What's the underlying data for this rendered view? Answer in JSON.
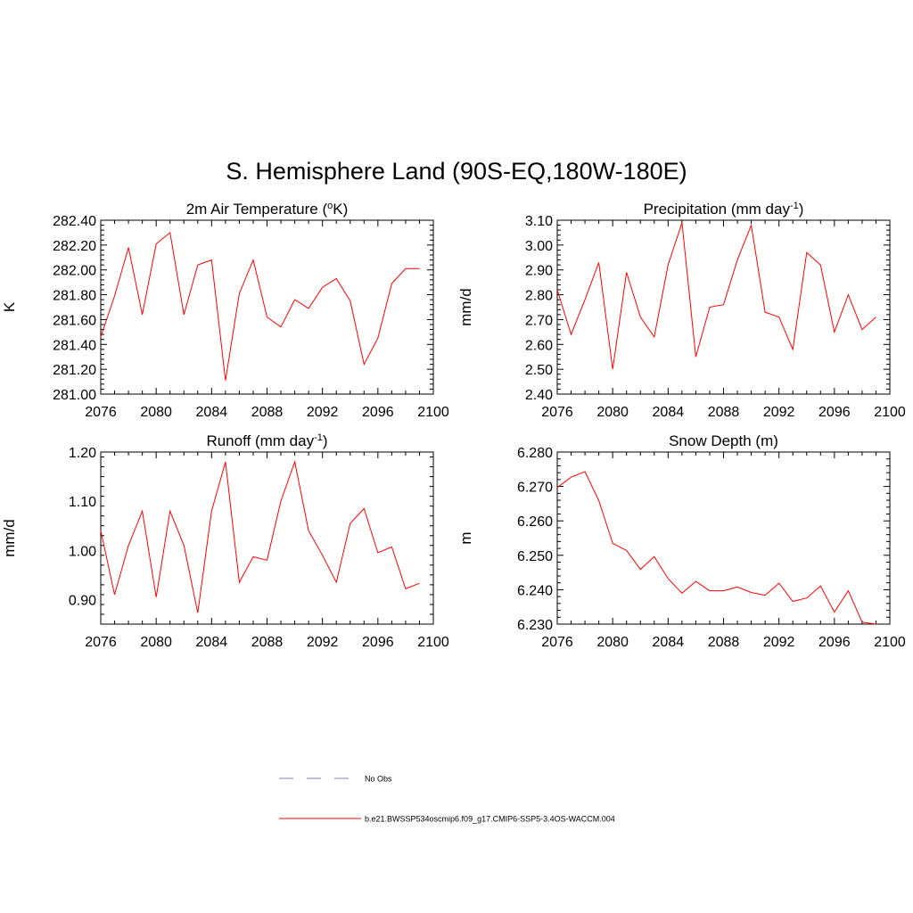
{
  "figure": {
    "title": "S. Hemisphere Land (90S-EQ,180W-180E)"
  },
  "legend": {
    "obs_label": "No Obs",
    "obs_color": "#9999dd",
    "model_label": "b.e21.BWSSP534oscmip6.f09_g17.CMIP6-SSP5-3.4OS-WACCM.004",
    "model_color": "#ff0000"
  },
  "chart_data": [
    {
      "type": "line",
      "panel": "top-left",
      "title": "2m Air Temperature (",
      "title_sup": "o",
      "title_post": "K)",
      "ylabel": "K",
      "xlim": [
        2076,
        2100
      ],
      "ylim": [
        281.0,
        282.4
      ],
      "xticks": [
        "2076",
        "2080",
        "2084",
        "2088",
        "2092",
        "2096",
        "2100"
      ],
      "yticks": [
        "281.00",
        "281.20",
        "281.40",
        "281.60",
        "281.80",
        "282.00",
        "282.20",
        "282.40"
      ],
      "x": [
        2076,
        2077,
        2078,
        2079,
        2080,
        2081,
        2082,
        2083,
        2084,
        2085,
        2086,
        2087,
        2088,
        2089,
        2090,
        2091,
        2092,
        2093,
        2094,
        2095,
        2096,
        2097,
        2098,
        2099
      ],
      "series": [
        {
          "name": "b.e21.BWSSP534oscmip6.f09_g17.CMIP6-SSP5-3.4OS-WACCM.004",
          "color": "#ff0000",
          "values": [
            281.46,
            281.79,
            282.18,
            281.64,
            282.21,
            282.3,
            281.64,
            282.04,
            282.08,
            281.11,
            281.81,
            282.08,
            281.62,
            281.54,
            281.76,
            281.69,
            281.86,
            281.93,
            281.75,
            281.24,
            281.45,
            281.89,
            282.01,
            282.01
          ]
        }
      ]
    },
    {
      "type": "line",
      "panel": "top-right",
      "title": "Precipitation (mm day",
      "title_sup": "-1",
      "title_post": ")",
      "ylabel": "mm/d",
      "xlim": [
        2076,
        2100
      ],
      "ylim": [
        2.4,
        3.1
      ],
      "xticks": [
        "2076",
        "2080",
        "2084",
        "2088",
        "2092",
        "2096",
        "2100"
      ],
      "yticks": [
        "2.40",
        "2.50",
        "2.60",
        "2.70",
        "2.80",
        "2.90",
        "3.00",
        "3.10"
      ],
      "x": [
        2076,
        2077,
        2078,
        2079,
        2080,
        2081,
        2082,
        2083,
        2084,
        2085,
        2086,
        2087,
        2088,
        2089,
        2090,
        2091,
        2092,
        2093,
        2094,
        2095,
        2096,
        2097,
        2098,
        2099
      ],
      "series": [
        {
          "name": "b.e21.BWSSP534oscmip6.f09_g17.CMIP6-SSP5-3.4OS-WACCM.004",
          "color": "#ff0000",
          "values": [
            2.82,
            2.64,
            2.78,
            2.93,
            2.5,
            2.89,
            2.71,
            2.63,
            2.92,
            3.09,
            2.55,
            2.75,
            2.76,
            2.94,
            3.08,
            2.73,
            2.71,
            2.58,
            2.97,
            2.92,
            2.65,
            2.8,
            2.66,
            2.71
          ]
        }
      ]
    },
    {
      "type": "line",
      "panel": "bottom-left",
      "title": "Runoff (mm day",
      "title_sup": "-1",
      "title_post": ")",
      "ylabel": "mm/d",
      "xlim": [
        2076,
        2100
      ],
      "ylim": [
        0.85,
        1.2
      ],
      "xticks": [
        "2076",
        "2080",
        "2084",
        "2088",
        "2092",
        "2096",
        "2100"
      ],
      "yticks": [
        "0.90",
        "1.00",
        "1.10",
        "1.20"
      ],
      "ytick_values": [
        0.9,
        1.0,
        1.1,
        1.2
      ],
      "x": [
        2076,
        2077,
        2078,
        2079,
        2080,
        2081,
        2082,
        2083,
        2084,
        2085,
        2086,
        2087,
        2088,
        2089,
        2090,
        2091,
        2092,
        2093,
        2094,
        2095,
        2096,
        2097,
        2098,
        2099
      ],
      "series": [
        {
          "name": "b.e21.BWSSP534oscmip6.f09_g17.CMIP6-SSP5-3.4OS-WACCM.004",
          "color": "#ff0000",
          "values": [
            1.04,
            0.91,
            1.01,
            1.08,
            0.905,
            1.08,
            1.01,
            0.873,
            1.08,
            1.18,
            0.935,
            0.987,
            0.98,
            1.1,
            1.18,
            1.04,
            0.99,
            0.935,
            1.055,
            1.085,
            0.995,
            1.007,
            0.922,
            0.933
          ]
        }
      ]
    },
    {
      "type": "line",
      "panel": "bottom-right",
      "title": "Snow Depth (m)",
      "title_sup": "",
      "title_post": "",
      "ylabel": "m",
      "xlim": [
        2076,
        2100
      ],
      "ylim": [
        6.23,
        6.28
      ],
      "xticks": [
        "2076",
        "2080",
        "2084",
        "2088",
        "2092",
        "2096",
        "2100"
      ],
      "yticks": [
        "6.230",
        "6.240",
        "6.250",
        "6.260",
        "6.270",
        "6.280"
      ],
      "x": [
        2076,
        2077,
        2078,
        2079,
        2080,
        2081,
        2082,
        2083,
        2084,
        2085,
        2086,
        2087,
        2088,
        2089,
        2090,
        2091,
        2092,
        2093,
        2094,
        2095,
        2096,
        2097,
        2098,
        2099
      ],
      "series": [
        {
          "name": "b.e21.BWSSP534oscmip6.f09_g17.CMIP6-SSP5-3.4OS-WACCM.004",
          "color": "#ff0000",
          "values": [
            6.2697,
            6.2727,
            6.2743,
            6.2659,
            6.2535,
            6.2514,
            6.2459,
            6.2496,
            6.2432,
            6.239,
            6.2424,
            6.2397,
            6.2397,
            6.2408,
            6.2392,
            6.2384,
            6.2419,
            6.2366,
            6.2376,
            6.2411,
            6.2335,
            6.2397,
            6.2306,
            6.23
          ]
        }
      ]
    }
  ]
}
